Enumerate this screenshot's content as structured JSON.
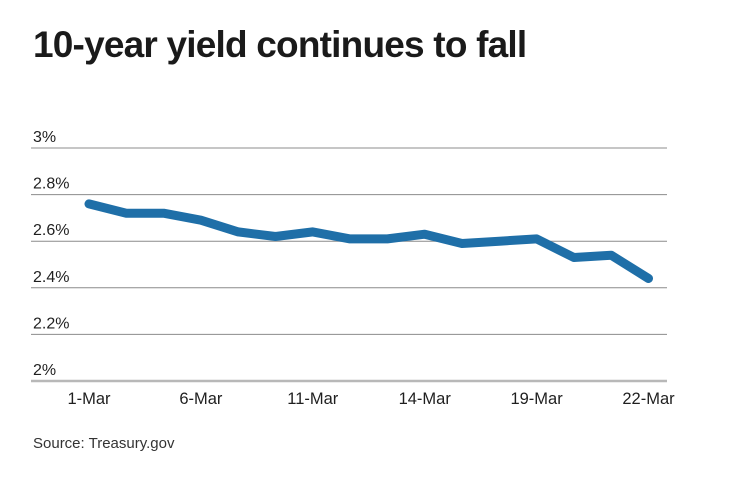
{
  "header": {
    "title": "10-year yield continues to fall"
  },
  "footer": {
    "source": "Source: Treasury.gov"
  },
  "chart_data": {
    "type": "line",
    "title": "10-year yield continues to fall",
    "source": "Source: Treasury.gov",
    "series": [
      {
        "name": "10-year yield",
        "values": [
          2.76,
          2.72,
          2.72,
          2.69,
          2.64,
          2.62,
          2.64,
          2.61,
          2.61,
          2.63,
          2.59,
          2.6,
          2.61,
          2.53,
          2.54,
          2.44
        ]
      }
    ],
    "n_points": 16,
    "x_tick_indices": [
      0,
      3,
      6,
      9,
      12,
      15
    ],
    "x_tick_labels": [
      "1-Mar",
      "6-Mar",
      "11-Mar",
      "14-Mar",
      "19-Mar",
      "22-Mar"
    ],
    "y_ticks": [
      3,
      2.8,
      2.6,
      2.4,
      2.2,
      2
    ],
    "y_tick_labels": [
      "3%",
      "2.8%",
      "2.6%",
      "2.4%",
      "2.2%",
      "2%"
    ],
    "ylim": [
      2,
      3
    ],
    "xlabel": "",
    "ylabel": "",
    "legend": "none",
    "grid": "horizontal",
    "line_color": "#1f6fa8",
    "line_width": 9,
    "grid_color": "#8c8c8c",
    "axis_color": "#b8b8b8",
    "text_color": "#1f1f1f"
  }
}
